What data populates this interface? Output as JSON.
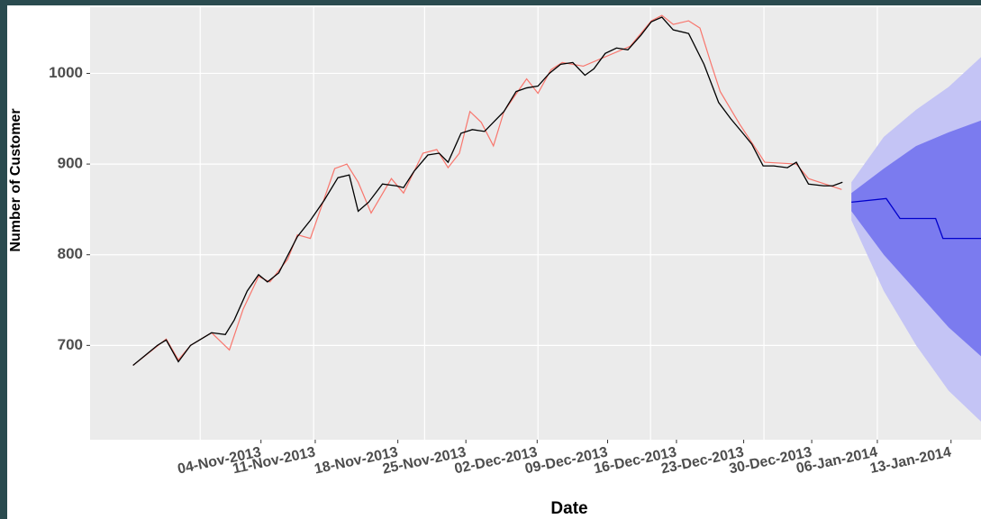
{
  "chart_data": {
    "type": "line",
    "x_label": "Date",
    "y_label": "Number of Customer",
    "xlim": [
      0,
      110
    ],
    "ylim": [
      596,
      1073
    ],
    "yticks": [
      700,
      800,
      900,
      1000
    ],
    "xgrid": [
      13.6,
      27.6,
      41.3,
      55.3,
      69.2,
      83.2,
      97.2
    ],
    "xticks": [
      {
        "value": 21.1,
        "label": "04-Nov-2013"
      },
      {
        "value": 27.8,
        "label": "11-Nov-2013"
      },
      {
        "value": 38,
        "label": "18-Nov-2013"
      },
      {
        "value": 46.4,
        "label": "25-Nov-2013"
      },
      {
        "value": 55.2,
        "label": "02-Dec-2013"
      },
      {
        "value": 63.9,
        "label": "09-Dec-2013"
      },
      {
        "value": 72.4,
        "label": "16-Dec-2013"
      },
      {
        "value": 80.7,
        "label": "23-Dec-2013"
      },
      {
        "value": 89.1,
        "label": "30-Dec-2013"
      },
      {
        "value": 97.2,
        "label": "06-Jan-2014"
      },
      {
        "value": 106.3,
        "label": "13-Jan-2014"
      }
    ],
    "grid": true,
    "actual": {
      "color": "#000000",
      "x": [
        5.3,
        8.3,
        9.4,
        10.9,
        12.4,
        15,
        16.7,
        17.8,
        19.4,
        20.8,
        21.9,
        23.3,
        25.6,
        27.2,
        28.9,
        30.6,
        32,
        33.1,
        34.4,
        36.1,
        37.8,
        38.7,
        40,
        41.7,
        43.1,
        44.2,
        45.8,
        47.2,
        48.7,
        51.1,
        52.6,
        53.9,
        55.3,
        56.7,
        58.1,
        59.6,
        61.1,
        62.2,
        63.6,
        65,
        66.4,
        68,
        69.3,
        70.6,
        72,
        73.9,
        75.8,
        77.6,
        79.1,
        80.6,
        81.7,
        83.1,
        84.4,
        86.1,
        87.2,
        88.7,
        90.6,
        91.7,
        92.9
      ],
      "values": [
        678,
        700,
        706,
        682,
        700,
        714,
        712,
        728,
        760,
        778,
        770,
        780,
        820,
        838,
        860,
        885,
        888,
        848,
        858,
        878,
        876,
        874,
        892,
        910,
        912,
        902,
        934,
        938,
        936,
        958,
        980,
        984,
        986,
        1000,
        1010,
        1012,
        998,
        1005,
        1022,
        1028,
        1026,
        1042,
        1057,
        1062,
        1048,
        1044,
        1010,
        968,
        950,
        934,
        922,
        898,
        898,
        896,
        902,
        878,
        876,
        876,
        880
      ]
    },
    "fitted": {
      "color": "#f8766d",
      "x": [
        5.3,
        9.4,
        10.9,
        12.4,
        15,
        17.2,
        18.9,
        20.8,
        22.2,
        24.4,
        25.6,
        27.2,
        30.2,
        31.7,
        33.1,
        34.7,
        37.2,
        38.7,
        41.1,
        42.8,
        44.2,
        45.6,
        46.9,
        48.3,
        49.8,
        51.1,
        53.9,
        55.3,
        56.9,
        58.3,
        60.9,
        66.7,
        69.3,
        70.6,
        72,
        73.9,
        75.3,
        76.7,
        77.8,
        80.2,
        83.3,
        87.2,
        88.7,
        92.8
      ],
      "values": [
        678,
        707,
        684,
        700,
        714,
        695,
        740,
        776,
        770,
        795,
        822,
        818,
        895,
        900,
        880,
        846,
        884,
        868,
        912,
        916,
        896,
        912,
        958,
        946,
        920,
        958,
        994,
        978,
        1004,
        1012,
        1008,
        1030,
        1058,
        1064,
        1054,
        1058,
        1050,
        1010,
        980,
        944,
        902,
        900,
        884,
        872
      ]
    },
    "forecast": {
      "color": "#0000cc",
      "color80": "#7b7bef",
      "color95": "#c4c4f5",
      "x": [
        94,
        98.3,
        100,
        104.4,
        105.3,
        110
      ],
      "values": [
        858,
        862,
        840,
        840,
        818,
        818
      ],
      "band_x": [
        94,
        98,
        102,
        106,
        110
      ],
      "upper80": [
        868,
        895,
        920,
        935,
        948
      ],
      "lower80": [
        848,
        800,
        760,
        720,
        688
      ],
      "upper95": [
        880,
        930,
        960,
        985,
        1018
      ],
      "lower95": [
        838,
        760,
        700,
        650,
        616
      ]
    }
  }
}
